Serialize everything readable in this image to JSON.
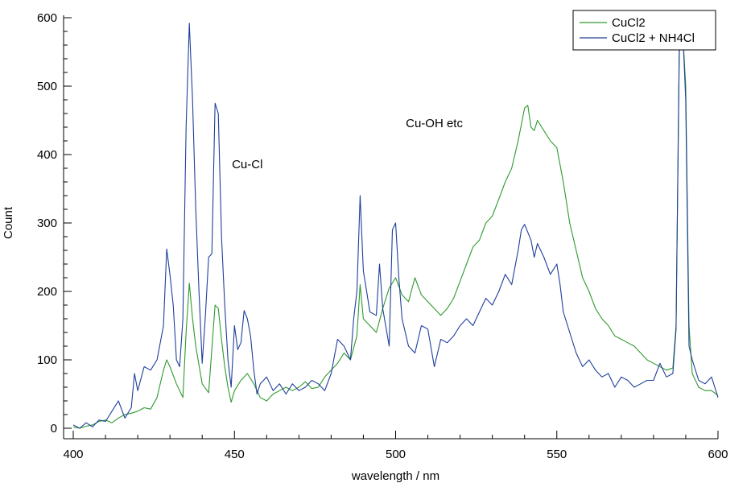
{
  "chart_data": {
    "type": "line",
    "xlabel": "wavelength / nm",
    "ylabel": "Count",
    "xlim": [
      400,
      600
    ],
    "ylim": [
      0,
      600
    ],
    "x_ticks": [
      "400",
      "450",
      "500",
      "550",
      "600"
    ],
    "y_ticks": [
      "0",
      "100",
      "200",
      "300",
      "400",
      "500",
      "600"
    ],
    "grid": false,
    "legend_position": "top-right",
    "annotations": [
      {
        "text": "Cu-Cl",
        "x": 454,
        "y": 380
      },
      {
        "text": "Cu-OH etc",
        "x": 512,
        "y": 440
      }
    ],
    "series": [
      {
        "name": "CuCl2",
        "color": "#2e9a2e",
        "points": [
          [
            400,
            2
          ],
          [
            402,
            0
          ],
          [
            404,
            3
          ],
          [
            406,
            5
          ],
          [
            408,
            10
          ],
          [
            410,
            12
          ],
          [
            412,
            8
          ],
          [
            414,
            15
          ],
          [
            416,
            20
          ],
          [
            418,
            22
          ],
          [
            420,
            25
          ],
          [
            422,
            30
          ],
          [
            424,
            28
          ],
          [
            426,
            45
          ],
          [
            428,
            85
          ],
          [
            429,
            100
          ],
          [
            430,
            90
          ],
          [
            432,
            65
          ],
          [
            434,
            45
          ],
          [
            435,
            140
          ],
          [
            436,
            212
          ],
          [
            437,
            160
          ],
          [
            438,
            120
          ],
          [
            440,
            65
          ],
          [
            442,
            52
          ],
          [
            444,
            180
          ],
          [
            445,
            175
          ],
          [
            446,
            130
          ],
          [
            447,
            90
          ],
          [
            448,
            60
          ],
          [
            449,
            38
          ],
          [
            450,
            55
          ],
          [
            452,
            70
          ],
          [
            454,
            80
          ],
          [
            456,
            65
          ],
          [
            458,
            45
          ],
          [
            460,
            40
          ],
          [
            462,
            50
          ],
          [
            464,
            55
          ],
          [
            466,
            60
          ],
          [
            468,
            55
          ],
          [
            470,
            60
          ],
          [
            472,
            68
          ],
          [
            474,
            58
          ],
          [
            476,
            60
          ],
          [
            478,
            75
          ],
          [
            480,
            85
          ],
          [
            482,
            95
          ],
          [
            484,
            110
          ],
          [
            486,
            100
          ],
          [
            488,
            135
          ],
          [
            489,
            210
          ],
          [
            490,
            160
          ],
          [
            492,
            150
          ],
          [
            494,
            140
          ],
          [
            496,
            175
          ],
          [
            498,
            205
          ],
          [
            500,
            220
          ],
          [
            502,
            195
          ],
          [
            504,
            185
          ],
          [
            506,
            220
          ],
          [
            508,
            195
          ],
          [
            510,
            185
          ],
          [
            512,
            175
          ],
          [
            514,
            165
          ],
          [
            516,
            175
          ],
          [
            518,
            190
          ],
          [
            520,
            215
          ],
          [
            522,
            240
          ],
          [
            524,
            265
          ],
          [
            526,
            275
          ],
          [
            528,
            300
          ],
          [
            530,
            310
          ],
          [
            532,
            335
          ],
          [
            534,
            360
          ],
          [
            536,
            380
          ],
          [
            538,
            420
          ],
          [
            540,
            468
          ],
          [
            541,
            472
          ],
          [
            542,
            440
          ],
          [
            543,
            435
          ],
          [
            544,
            450
          ],
          [
            546,
            435
          ],
          [
            548,
            420
          ],
          [
            550,
            410
          ],
          [
            552,
            360
          ],
          [
            554,
            300
          ],
          [
            556,
            260
          ],
          [
            558,
            220
          ],
          [
            560,
            200
          ],
          [
            562,
            175
          ],
          [
            564,
            160
          ],
          [
            566,
            150
          ],
          [
            568,
            135
          ],
          [
            570,
            130
          ],
          [
            572,
            125
          ],
          [
            574,
            120
          ],
          [
            576,
            110
          ],
          [
            578,
            100
          ],
          [
            580,
            95
          ],
          [
            582,
            90
          ],
          [
            584,
            85
          ],
          [
            586,
            88
          ],
          [
            587,
            150
          ],
          [
            588,
            560
          ],
          [
            589,
            585
          ],
          [
            590,
            500
          ],
          [
            591,
            150
          ],
          [
            592,
            80
          ],
          [
            594,
            60
          ],
          [
            596,
            55
          ],
          [
            598,
            55
          ],
          [
            600,
            48
          ]
        ]
      },
      {
        "name": "CuCl2 + NH4Cl",
        "color": "#1f3f9b",
        "points": [
          [
            400,
            5
          ],
          [
            402,
            0
          ],
          [
            404,
            8
          ],
          [
            406,
            2
          ],
          [
            408,
            12
          ],
          [
            410,
            10
          ],
          [
            412,
            25
          ],
          [
            414,
            40
          ],
          [
            416,
            15
          ],
          [
            418,
            30
          ],
          [
            419,
            80
          ],
          [
            420,
            55
          ],
          [
            422,
            90
          ],
          [
            424,
            85
          ],
          [
            426,
            100
          ],
          [
            428,
            150
          ],
          [
            429,
            262
          ],
          [
            430,
            225
          ],
          [
            431,
            180
          ],
          [
            432,
            100
          ],
          [
            433,
            90
          ],
          [
            434,
            160
          ],
          [
            435,
            440
          ],
          [
            436,
            592
          ],
          [
            437,
            480
          ],
          [
            438,
            320
          ],
          [
            439,
            200
          ],
          [
            440,
            95
          ],
          [
            441,
            165
          ],
          [
            442,
            250
          ],
          [
            443,
            255
          ],
          [
            444,
            475
          ],
          [
            445,
            460
          ],
          [
            446,
            280
          ],
          [
            447,
            180
          ],
          [
            448,
            100
          ],
          [
            449,
            60
          ],
          [
            450,
            150
          ],
          [
            451,
            115
          ],
          [
            452,
            125
          ],
          [
            453,
            172
          ],
          [
            454,
            160
          ],
          [
            455,
            135
          ],
          [
            456,
            85
          ],
          [
            457,
            50
          ],
          [
            458,
            65
          ],
          [
            460,
            75
          ],
          [
            462,
            55
          ],
          [
            464,
            65
          ],
          [
            466,
            50
          ],
          [
            468,
            65
          ],
          [
            470,
            55
          ],
          [
            472,
            60
          ],
          [
            474,
            70
          ],
          [
            476,
            65
          ],
          [
            478,
            55
          ],
          [
            480,
            80
          ],
          [
            482,
            130
          ],
          [
            484,
            120
          ],
          [
            486,
            100
          ],
          [
            487,
            160
          ],
          [
            488,
            200
          ],
          [
            489,
            340
          ],
          [
            490,
            230
          ],
          [
            491,
            200
          ],
          [
            492,
            170
          ],
          [
            494,
            165
          ],
          [
            495,
            240
          ],
          [
            496,
            175
          ],
          [
            498,
            120
          ],
          [
            499,
            290
          ],
          [
            500,
            300
          ],
          [
            501,
            220
          ],
          [
            502,
            160
          ],
          [
            504,
            120
          ],
          [
            506,
            110
          ],
          [
            508,
            150
          ],
          [
            510,
            145
          ],
          [
            512,
            90
          ],
          [
            514,
            130
          ],
          [
            516,
            125
          ],
          [
            518,
            135
          ],
          [
            520,
            150
          ],
          [
            522,
            160
          ],
          [
            524,
            150
          ],
          [
            526,
            170
          ],
          [
            528,
            190
          ],
          [
            530,
            180
          ],
          [
            532,
            200
          ],
          [
            534,
            225
          ],
          [
            536,
            210
          ],
          [
            538,
            260
          ],
          [
            539,
            290
          ],
          [
            540,
            298
          ],
          [
            542,
            275
          ],
          [
            543,
            250
          ],
          [
            544,
            270
          ],
          [
            546,
            250
          ],
          [
            548,
            225
          ],
          [
            550,
            240
          ],
          [
            551,
            210
          ],
          [
            552,
            170
          ],
          [
            554,
            140
          ],
          [
            556,
            110
          ],
          [
            558,
            90
          ],
          [
            560,
            100
          ],
          [
            562,
            85
          ],
          [
            564,
            75
          ],
          [
            566,
            80
          ],
          [
            568,
            60
          ],
          [
            570,
            75
          ],
          [
            572,
            70
          ],
          [
            574,
            60
          ],
          [
            576,
            65
          ],
          [
            578,
            70
          ],
          [
            580,
            70
          ],
          [
            582,
            95
          ],
          [
            584,
            75
          ],
          [
            586,
            80
          ],
          [
            587,
            145
          ],
          [
            588,
            550
          ],
          [
            589,
            590
          ],
          [
            590,
            480
          ],
          [
            591,
            120
          ],
          [
            592,
            100
          ],
          [
            594,
            70
          ],
          [
            596,
            65
          ],
          [
            598,
            75
          ],
          [
            600,
            45
          ]
        ]
      }
    ]
  }
}
